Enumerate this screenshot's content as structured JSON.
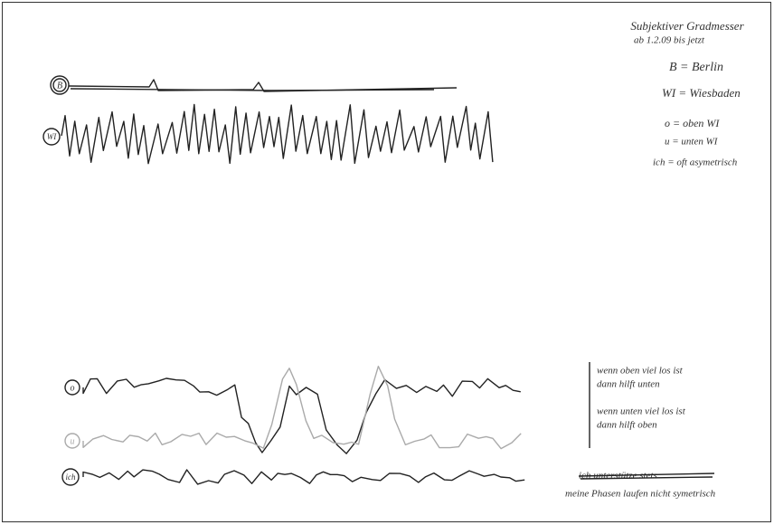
{
  "header": {
    "title": "Subjektiver Gradmesser",
    "subtitle": "ab 1.2.09 bis jetzt"
  },
  "legend": [
    "B = Berlin",
    "WI = Wiesbaden",
    "o = oben WI",
    "u = unten WI",
    "ich = oft asymetrisch"
  ],
  "rows": {
    "top": [
      "B",
      "WI"
    ],
    "bottom": [
      "o",
      "u",
      "ich"
    ]
  },
  "notes": [
    "wenn oben viel los ist",
    "dann hilft unten",
    "wenn unten viel los ist",
    "dann hilft oben"
  ],
  "footer": {
    "struck": "ich unterstütze stets",
    "text": "meine Phasen laufen nicht symetrisch"
  }
}
